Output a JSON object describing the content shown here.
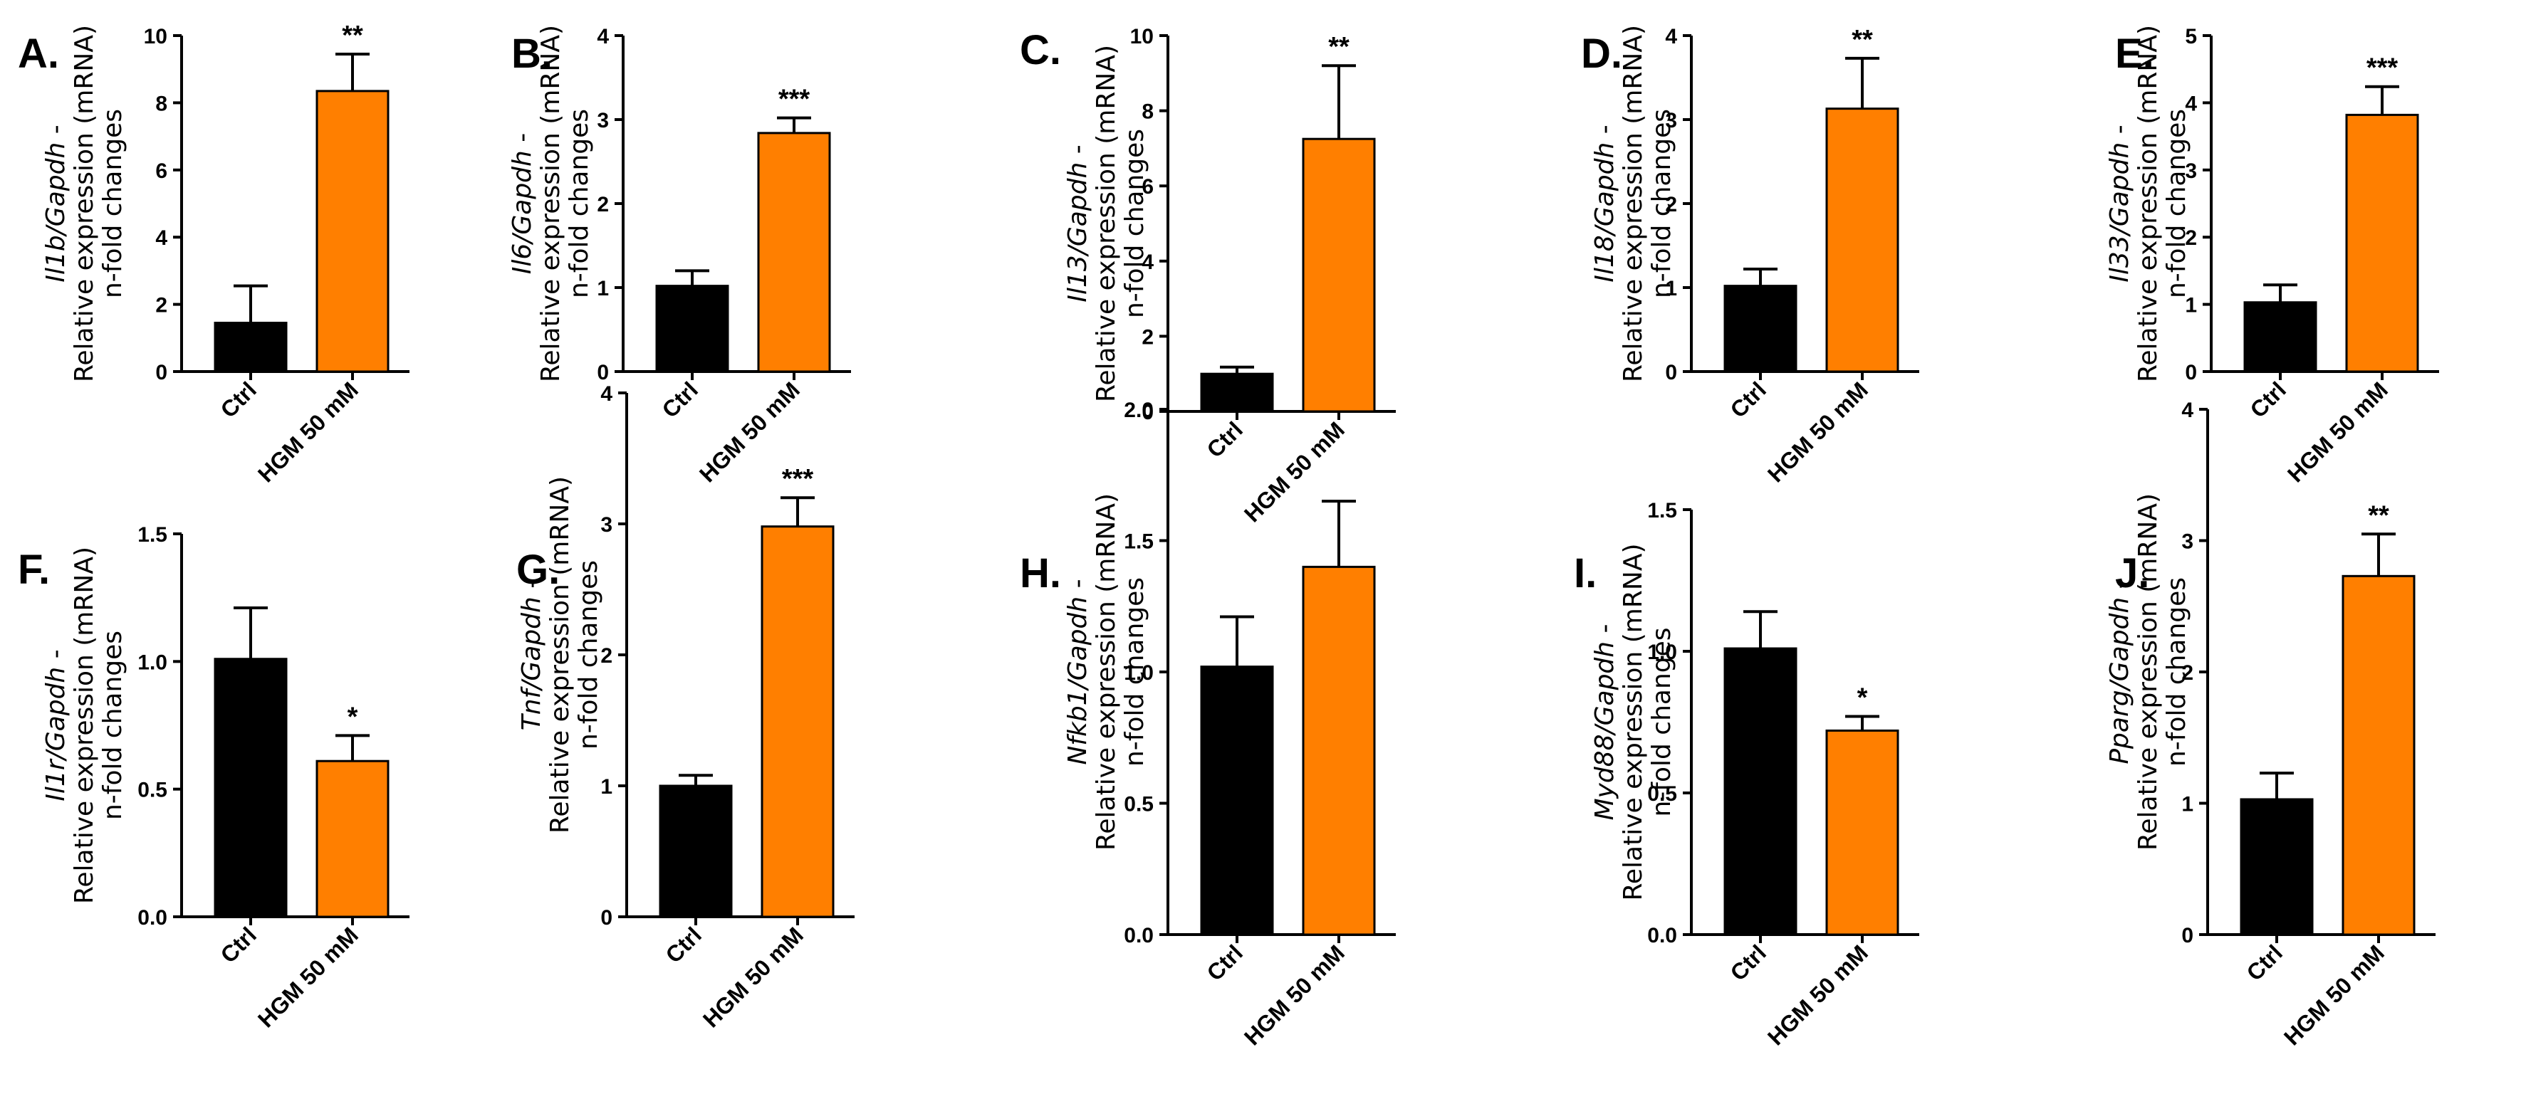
{
  "figure": {
    "ylabel_line2": "Relative expression (mRNA)",
    "ylabel_line3": "n-fold changes",
    "gene_suffix": " -"
  },
  "colors": {
    "ctrl": "#000000",
    "hgm": "#ff7f00",
    "axis": "#000000"
  },
  "chart_data": [
    {
      "type": "bar",
      "panel": "A.",
      "gene": "Il1b/Gapdh",
      "categories": [
        "Ctrl",
        "HGM 50 mM"
      ],
      "values": [
        1.45,
        8.35
      ],
      "errors": [
        1.1,
        1.1
      ],
      "significance": "**",
      "ylim": [
        0,
        10
      ],
      "yticks": [
        "0",
        "2",
        "4",
        "6",
        "8",
        "10"
      ]
    },
    {
      "type": "bar",
      "panel": "B.",
      "gene": "Il6/Gapdh",
      "categories": [
        "Ctrl",
        "HGM 50 mM"
      ],
      "values": [
        1.02,
        2.84
      ],
      "errors": [
        0.18,
        0.18
      ],
      "significance": "***",
      "ylim": [
        0,
        4
      ],
      "yticks": [
        "0",
        "1",
        "2",
        "3",
        "4"
      ]
    },
    {
      "type": "bar",
      "panel": "C.",
      "gene": "Il13/Gapdh",
      "categories": [
        "Ctrl",
        "HGM 50 mM"
      ],
      "values": [
        1.0,
        7.25
      ],
      "errors": [
        0.18,
        1.95
      ],
      "significance": "**",
      "ylim": [
        0,
        10
      ],
      "yticks": [
        "0",
        "2",
        "4",
        "6",
        "8",
        "10"
      ]
    },
    {
      "type": "bar",
      "panel": "D.",
      "gene": "Il18/Gapdh",
      "categories": [
        "Ctrl",
        "HGM 50 mM"
      ],
      "values": [
        1.02,
        3.13
      ],
      "errors": [
        0.2,
        0.6
      ],
      "significance": "**",
      "ylim": [
        0,
        4
      ],
      "yticks": [
        "0",
        "1",
        "2",
        "3",
        "4"
      ]
    },
    {
      "type": "bar",
      "panel": "E.",
      "gene": "Il33/Gapdh",
      "categories": [
        "Ctrl",
        "HGM 50 mM"
      ],
      "values": [
        1.03,
        3.82
      ],
      "errors": [
        0.26,
        0.42
      ],
      "significance": "***",
      "ylim": [
        0,
        5
      ],
      "yticks": [
        "0",
        "1",
        "2",
        "3",
        "4",
        "5"
      ]
    },
    {
      "type": "bar",
      "panel": "F.",
      "gene": "Il1r/Gapdh",
      "categories": [
        "Ctrl",
        "HGM 50 mM"
      ],
      "values": [
        1.01,
        0.61
      ],
      "errors": [
        0.2,
        0.1
      ],
      "significance": "*",
      "ylim": [
        0,
        1.5
      ],
      "yticks": [
        "0.0",
        "0.5",
        "1.0",
        "1.5"
      ]
    },
    {
      "type": "bar",
      "panel": "G.",
      "gene": "Tnf/Gapdh",
      "categories": [
        "Ctrl",
        "HGM 50 mM"
      ],
      "values": [
        1.0,
        2.98
      ],
      "errors": [
        0.08,
        0.22
      ],
      "significance": "***",
      "ylim": [
        0,
        4
      ],
      "yticks": [
        "0",
        "1",
        "2",
        "3",
        "4"
      ]
    },
    {
      "type": "bar",
      "panel": "H.",
      "gene": "Nfkb1/Gapdh",
      "categories": [
        "Ctrl",
        "HGM 50 mM"
      ],
      "values": [
        1.02,
        1.4
      ],
      "errors": [
        0.19,
        0.25
      ],
      "significance": "",
      "ylim": [
        0,
        2.0
      ],
      "yticks": [
        "0.0",
        "0.5",
        "1.0",
        "1.5",
        "2.0"
      ]
    },
    {
      "type": "bar",
      "panel": "I.",
      "gene": "Myd88/Gapdh",
      "categories": [
        "Ctrl",
        "HGM 50 mM"
      ],
      "values": [
        1.01,
        0.72
      ],
      "errors": [
        0.13,
        0.05
      ],
      "significance": "*",
      "ylim": [
        0,
        1.5
      ],
      "yticks": [
        "0.0",
        "0.5",
        "1.0",
        "1.5"
      ]
    },
    {
      "type": "bar",
      "panel": "J.",
      "gene": "Pparg/Gapdh",
      "categories": [
        "Ctrl",
        "HGM 50 mM"
      ],
      "values": [
        1.03,
        2.73
      ],
      "errors": [
        0.2,
        0.32
      ],
      "significance": "**",
      "ylim": [
        0,
        4
      ],
      "yticks": [
        "0",
        "1",
        "2",
        "3",
        "4"
      ]
    }
  ]
}
